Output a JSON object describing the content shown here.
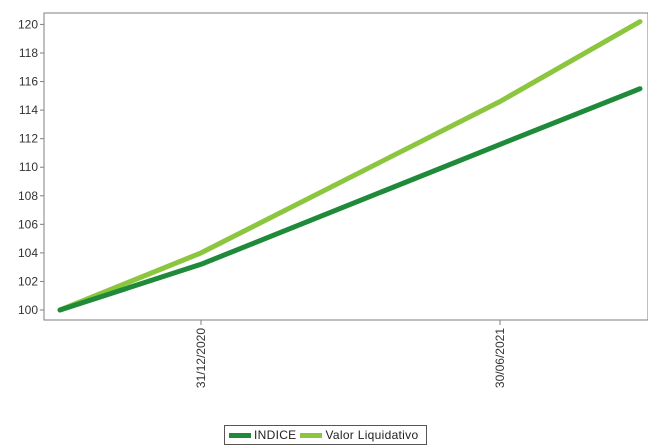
{
  "chart_data": {
    "type": "line",
    "x": [
      "",
      "31/12/2020",
      "30/06/2021",
      ""
    ],
    "x_tick_labels": [
      "31/12/2020",
      "30/06/2021"
    ],
    "series": [
      {
        "name": "INDICE",
        "color": "#1e8a3a",
        "values": [
          100,
          103.2,
          111.6,
          115.5
        ]
      },
      {
        "name": "Valor Liquidativo",
        "color": "#8cc63f",
        "values": [
          100,
          104.0,
          114.6,
          120.2
        ]
      }
    ],
    "ylim": [
      99.3,
      120.8
    ],
    "yticks": [
      100,
      102,
      104,
      106,
      108,
      110,
      112,
      114,
      116,
      118,
      120
    ],
    "grid": false,
    "legend_position": "bottom-center",
    "title": "",
    "xlabel": "",
    "ylabel": ""
  }
}
